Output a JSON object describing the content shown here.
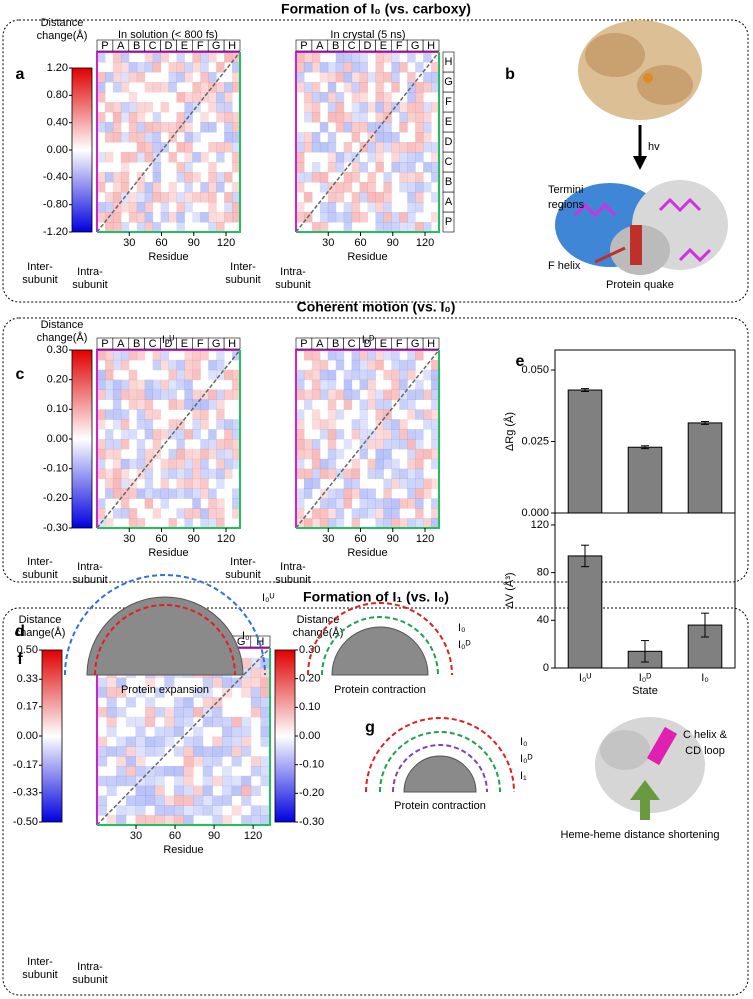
{
  "sections": [
    {
      "title": "Formation of I₀ (vs. carboxy)"
    },
    {
      "title": "Coherent motion (vs. I₀)"
    },
    {
      "title": "Formation of I₁ (vs. I₀)"
    }
  ],
  "panels": [
    "a",
    "b",
    "c",
    "d",
    "e",
    "f",
    "g"
  ],
  "colorbar_title": [
    "Distance",
    "change(Å)"
  ],
  "colorbar_a": [
    {
      "value": 1.2,
      "label": "1.20"
    },
    {
      "value": 0.8,
      "label": "0.80"
    },
    {
      "value": 0.4,
      "label": "0.40"
    },
    {
      "value": 0,
      "label": "0.00"
    },
    {
      "value": -0.4,
      "label": "-0.40"
    },
    {
      "value": -0.8,
      "label": "-0.80"
    },
    {
      "value": -1.2,
      "label": "-1.20"
    }
  ],
  "colorbar_c": [
    {
      "value": 0.3,
      "label": "0.30"
    },
    {
      "value": 0.2,
      "label": "0.20"
    },
    {
      "value": 0.1,
      "label": "0.10"
    },
    {
      "value": 0,
      "label": "0.00"
    },
    {
      "value": -0.1,
      "label": "-0.10"
    },
    {
      "value": -0.2,
      "label": "-0.20"
    },
    {
      "value": -0.3,
      "label": "-0.30"
    }
  ],
  "colorbar_f_left": [
    {
      "value": 0.5,
      "label": "0.50"
    },
    {
      "value": 0.33,
      "label": "0.33"
    },
    {
      "value": 0.17,
      "label": "0.17"
    },
    {
      "value": 0,
      "label": "0.00"
    },
    {
      "value": -0.17,
      "label": "-0.17"
    },
    {
      "value": -0.33,
      "label": "-0.33"
    },
    {
      "value": -0.5,
      "label": "-0.50"
    }
  ],
  "colorbar_f_right": [
    {
      "value": 0.3,
      "label": "0.30"
    },
    {
      "value": 0.2,
      "label": "0.20"
    },
    {
      "value": 0.1,
      "label": "0.10"
    },
    {
      "value": 0,
      "label": "0.00"
    },
    {
      "value": -0.1,
      "label": "-0.10"
    },
    {
      "value": -0.2,
      "label": "-0.20"
    },
    {
      "value": -0.3,
      "label": "-0.30"
    }
  ],
  "helices": [
    "P",
    "A",
    "B",
    "C",
    "D",
    "E",
    "F",
    "G",
    "H"
  ],
  "residue_lim": [
    0,
    133
  ],
  "residue_ticks": [
    30,
    60,
    90,
    120
  ],
  "residue_label": "Residue",
  "inter_subunit": [
    "Inter-",
    "subunit"
  ],
  "intra_subunit": [
    "Intra-",
    "subunit"
  ],
  "heatmap_titles": [
    "In solution (< 800 fs)",
    "In crystal (5 ns)",
    "I₀ᵁ",
    "I₀ᴰ"
  ],
  "panel_b": {
    "hv": "hv",
    "termini": [
      "Termini",
      "regions"
    ],
    "f_helix": "F helix",
    "quake": "Protein quake"
  },
  "panel_d": {
    "expansion": {
      "outer": "I₀ᵁ",
      "inner": "I₀",
      "caption": "Protein expansion"
    },
    "contraction": {
      "outer": "I₀",
      "inner": "I₀ᴰ",
      "caption": "Protein contraction"
    }
  },
  "panel_g": {
    "labels": [
      "I₀",
      "I₀ᴰ",
      "I₁"
    ],
    "caption": "Protein contraction",
    "c_helix": [
      "C helix &",
      "CD loop"
    ],
    "heme": "Heme-heme distance shortening"
  },
  "chart_data": [
    {
      "type": "bar",
      "y_label": "ΔRg (Å)",
      "values": [
        0.043,
        0.023,
        0.0315
      ],
      "errors": [
        0.0005,
        0.0005,
        0.0005
      ],
      "color": "#808080",
      "ylim": [
        0,
        0.057
      ],
      "yticks": [
        {
          "value": 0,
          "label": "0.000"
        },
        {
          "value": 0.025,
          "label": "0.025"
        },
        {
          "value": 0.05,
          "label": "0.050"
        }
      ]
    },
    {
      "type": "bar",
      "y_label": "ΔV (Å³)",
      "x_label": "State",
      "categories": [
        "I₀ᵁ",
        "I₀ᴰ",
        "I₀"
      ],
      "values": [
        94,
        14,
        36
      ],
      "errors": [
        9,
        9,
        10
      ],
      "color": "#808080",
      "ylim": [
        0,
        130
      ],
      "yticks": [
        0,
        40,
        80,
        120
      ]
    }
  ]
}
